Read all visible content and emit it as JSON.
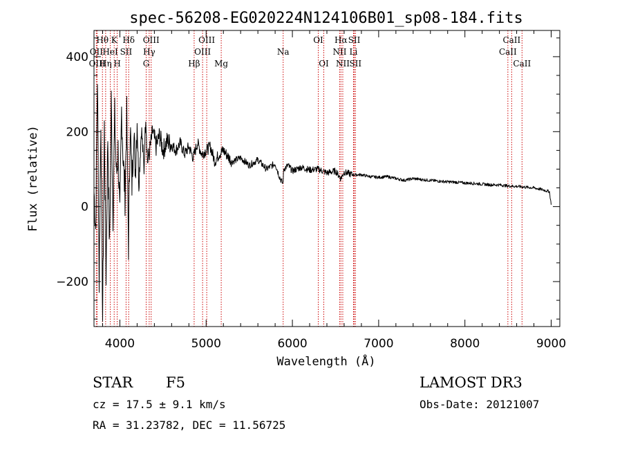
{
  "chart_data": {
    "type": "line",
    "title": "spec-56208-EG020224N124106B01_sp08-184.fits",
    "xlabel": "Wavelength (Å)",
    "ylabel": "Flux (relative)",
    "xlim": [
      3700,
      9100
    ],
    "ylim": [
      -320,
      470
    ],
    "x_ticks": [
      4000,
      5000,
      6000,
      7000,
      8000,
      9000
    ],
    "x_tick_labels": [
      "4000",
      "5000",
      "6000",
      "7000",
      "8000",
      "9000"
    ],
    "y_ticks": [
      -200,
      0,
      200,
      400
    ],
    "y_tick_labels": [
      "−200",
      "0",
      "200",
      "400"
    ],
    "grid": false,
    "series": [
      {
        "name": "flux",
        "color": "#000000",
        "x": [
          3700,
          3720,
          3740,
          3760,
          3780,
          3800,
          3820,
          3840,
          3860,
          3880,
          3900,
          3920,
          3940,
          3960,
          3980,
          4000,
          4020,
          4040,
          4060,
          4080,
          4100,
          4120,
          4140,
          4160,
          4180,
          4200,
          4220,
          4250,
          4280,
          4300,
          4320,
          4340,
          4380,
          4420,
          4460,
          4500,
          4550,
          4600,
          4650,
          4700,
          4750,
          4800,
          4850,
          4900,
          4950,
          5000,
          5050,
          5100,
          5150,
          5200,
          5300,
          5400,
          5500,
          5600,
          5700,
          5800,
          5850,
          5890,
          5900,
          5950,
          6000,
          6100,
          6200,
          6300,
          6400,
          6500,
          6562,
          6600,
          6700,
          6800,
          6900,
          7000,
          7100,
          7200,
          7300,
          7400,
          7500,
          7600,
          7700,
          7800,
          7900,
          8000,
          8100,
          8200,
          8300,
          8400,
          8500,
          8600,
          8700,
          8800,
          8900,
          8980,
          9000
        ],
        "y": [
          40,
          -60,
          350,
          -200,
          240,
          -300,
          210,
          -180,
          190,
          -120,
          280,
          -20,
          240,
          80,
          150,
          -40,
          260,
          120,
          30,
          240,
          -100,
          220,
          60,
          200,
          100,
          230,
          60,
          210,
          100,
          250,
          120,
          140,
          200,
          160,
          190,
          150,
          175,
          165,
          150,
          170,
          140,
          160,
          130,
          170,
          140,
          150,
          160,
          120,
          140,
          150,
          120,
          130,
          110,
          125,
          100,
          115,
          80,
          60,
          100,
          110,
          95,
          105,
          98,
          100,
          90,
          95,
          75,
          92,
          85,
          85,
          80,
          78,
          80,
          75,
          70,
          75,
          72,
          70,
          68,
          66,
          65,
          63,
          62,
          60,
          58,
          58,
          55,
          54,
          52,
          50,
          45,
          40,
          5
        ]
      }
    ],
    "lines": [
      {
        "label": "Hθ",
        "wavelength": 3798
      },
      {
        "label": "OII",
        "wavelength": 3727
      },
      {
        "label": "OIII",
        "wavelength": 3737
      },
      {
        "label": "K",
        "wavelength": 3934
      },
      {
        "label": "HeI",
        "wavelength": 3889
      },
      {
        "label": "Hη",
        "wavelength": 3835
      },
      {
        "label": "H",
        "wavelength": 3969
      },
      {
        "label": "Hδ",
        "wavelength": 4102
      },
      {
        "label": "SII",
        "wavelength": 4072
      },
      {
        "label": "OIII",
        "wavelength": 4363
      },
      {
        "label": "Hγ",
        "wavelength": 4340
      },
      {
        "label": "G",
        "wavelength": 4305
      },
      {
        "label": "OIII",
        "wavelength": 5007
      },
      {
        "label": "OIII",
        "wavelength": 4959
      },
      {
        "label": "Hβ",
        "wavelength": 4861
      },
      {
        "label": "Mg",
        "wavelength": 5175
      },
      {
        "label": "Na",
        "wavelength": 5893
      },
      {
        "label": "OI",
        "wavelength": 6300
      },
      {
        "label": "OI",
        "wavelength": 6364
      },
      {
        "label": "Hα",
        "wavelength": 6563
      },
      {
        "label": "NII",
        "wavelength": 6548
      },
      {
        "label": "NII",
        "wavelength": 6584
      },
      {
        "label": "SII",
        "wavelength": 6717
      },
      {
        "label": "Li",
        "wavelength": 6708
      },
      {
        "label": "SII",
        "wavelength": 6731
      },
      {
        "label": "CaII",
        "wavelength": 8542
      },
      {
        "label": "CaII",
        "wavelength": 8498
      },
      {
        "label": "CaII",
        "wavelength": 8662
      }
    ]
  },
  "info": {
    "class": "STAR",
    "subclass": "F5",
    "cz": "cz = 17.5 ± 9.1 km/s",
    "radec": "RA =  31.23782, DEC =  11.56725",
    "survey": "LAMOST DR3",
    "obs_date": "Obs-Date: 20121007"
  },
  "colors": {
    "line_marker": "#cc0000",
    "spectrum": "#000000",
    "axes": "#000000"
  }
}
